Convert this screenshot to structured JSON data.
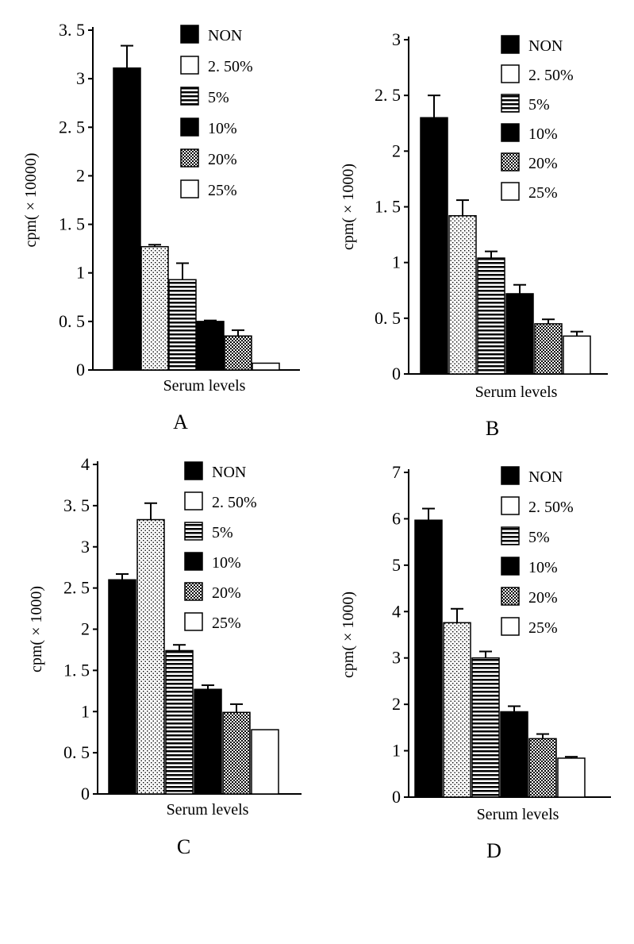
{
  "legend_entries": [
    "NON",
    "2. 50%",
    "5%",
    "10%",
    "20%",
    "25%"
  ],
  "chart_data": [
    {
      "type": "bar",
      "panel_label": "A",
      "xlabel": "Serum levels",
      "ylabel": "cpm( × 10000)",
      "ylim": [
        0,
        3.5
      ],
      "ticks": [
        0,
        0.5,
        1,
        1.5,
        2,
        2.5,
        3,
        3.5
      ],
      "tick_labels": [
        "0",
        "0. 5",
        "1",
        "1. 5",
        "2",
        "2. 5",
        "3",
        "3. 5"
      ],
      "categories": [
        "NON",
        "2. 50%",
        "5%",
        "10%",
        "20%",
        "25%"
      ],
      "values": [
        3.11,
        1.27,
        0.93,
        0.5,
        0.35,
        0.07
      ],
      "errors": [
        0.23,
        0.02,
        0.17,
        0.01,
        0.06,
        0
      ]
    },
    {
      "type": "bar",
      "panel_label": "B",
      "xlabel": "Serum levels",
      "ylabel": "cpm( × 1000)",
      "ylim": [
        0,
        3
      ],
      "ticks": [
        0,
        0.5,
        1,
        1.5,
        2,
        2.5,
        3
      ],
      "tick_labels": [
        "0",
        "0. 5",
        "1",
        "1. 5",
        "2",
        "2. 5",
        "3"
      ],
      "categories": [
        "NON",
        "2. 50%",
        "5%",
        "10%",
        "20%",
        "25%"
      ],
      "values": [
        2.3,
        1.42,
        1.04,
        0.72,
        0.45,
        0.34
      ],
      "errors": [
        0.2,
        0.14,
        0.06,
        0.08,
        0.04,
        0.04
      ]
    },
    {
      "type": "bar",
      "panel_label": "C",
      "xlabel": "Serum levels",
      "ylabel": "cpm( × 1000)",
      "ylim": [
        0,
        4
      ],
      "ticks": [
        0,
        0.5,
        1,
        1.5,
        2,
        2.5,
        3,
        3.5,
        4
      ],
      "tick_labels": [
        "0",
        "0. 5",
        "1",
        "1. 5",
        "2",
        "2. 5",
        "3",
        "3. 5",
        "4"
      ],
      "categories": [
        "NON",
        "2. 50%",
        "5%",
        "10%",
        "20%",
        "25%"
      ],
      "values": [
        2.6,
        3.33,
        1.74,
        1.27,
        0.99,
        0.78
      ],
      "errors": [
        0.07,
        0.2,
        0.07,
        0.05,
        0.1,
        0
      ]
    },
    {
      "type": "bar",
      "panel_label": "D",
      "xlabel": "Serum levels",
      "ylabel": "cpm( × 1000)",
      "ylim": [
        0,
        7
      ],
      "ticks": [
        0,
        1,
        2,
        3,
        4,
        5,
        6,
        7
      ],
      "tick_labels": [
        "0",
        "1",
        "2",
        "3",
        "4",
        "5",
        "6",
        "7"
      ],
      "categories": [
        "NON",
        "2. 50%",
        "5%",
        "10%",
        "20%",
        "25%"
      ],
      "values": [
        5.97,
        3.76,
        3.0,
        1.84,
        1.26,
        0.84
      ],
      "errors": [
        0.25,
        0.3,
        0.14,
        0.12,
        0.1,
        0.03
      ]
    }
  ]
}
